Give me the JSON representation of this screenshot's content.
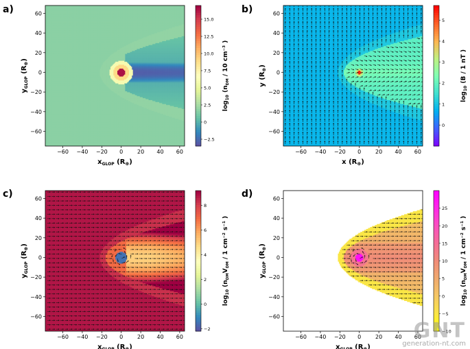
{
  "watermark": {
    "logo": "GNT",
    "site": "generation-nt.com"
  },
  "chart_data": [
    {
      "panel_label": "a)",
      "type": "heatmap",
      "field": "density",
      "xlim": [
        -78,
        65
      ],
      "ylim": [
        -75,
        68
      ],
      "x_ticks": [
        -60,
        -40,
        -20,
        0,
        20,
        40,
        60
      ],
      "y_ticks": [
        -60,
        -40,
        -20,
        0,
        20,
        40,
        60
      ],
      "xlabel": {
        "main": "x",
        "sub": "GLOP",
        "tail": " (R",
        "unit_sub": "⊕",
        "end": ")"
      },
      "ylabel": {
        "main": "y",
        "sub": "GLOP",
        "tail": " (R",
        "unit_sub": "⊕",
        "end": ")"
      },
      "colorbar": {
        "range": [
          -3.5,
          17
        ],
        "ticks": [
          -2.5,
          0,
          2.5,
          5,
          7.5,
          10,
          12.5,
          15
        ],
        "tick_labels": [
          "−2.5",
          "0",
          "2.5",
          "5.0",
          "7.5",
          "10.0",
          "12.5",
          "15.0"
        ],
        "colormap": "spectral",
        "label": {
          "prefix": "log",
          "prefix_sub": "10",
          "num": "n",
          "num_sub": "DM",
          "den": "10",
          "den_sup": "−3",
          "den_unit": "cm"
        }
      },
      "vectors": false
    },
    {
      "panel_label": "b)",
      "type": "heatmap",
      "field": "magnetic_field",
      "xlim": [
        -78,
        65
      ],
      "ylim": [
        -75,
        68
      ],
      "x_ticks": [
        -60,
        -40,
        -20,
        0,
        20,
        40,
        60
      ],
      "y_ticks": [
        -60,
        -40,
        -20,
        0,
        20,
        40,
        60
      ],
      "xlabel": {
        "main": "x",
        "sub": "",
        "tail": " (R",
        "unit_sub": "⊕",
        "end": ")"
      },
      "ylabel": {
        "main": "y",
        "sub": "",
        "tail": " (R",
        "unit_sub": "⊕",
        "end": ")"
      },
      "colorbar": {
        "range": [
          -1,
          5.7
        ],
        "ticks": [
          0,
          1,
          2,
          3,
          4,
          5
        ],
        "tick_labels": [
          "0",
          "1",
          "2",
          "3",
          "4",
          "5"
        ],
        "colormap": "rainbow",
        "label": {
          "prefix": "log",
          "prefix_sub": "10",
          "num": "B",
          "num_sub": "",
          "den": "1",
          "den_sup": "",
          "den_unit": "nT"
        }
      },
      "vectors": true
    },
    {
      "panel_label": "c)",
      "type": "heatmap",
      "field": "flux",
      "xlim": [
        -78,
        65
      ],
      "ylim": [
        -75,
        68
      ],
      "x_ticks": [
        -60,
        -40,
        -20,
        0,
        20,
        40,
        60
      ],
      "y_ticks": [
        -60,
        -40,
        -20,
        0,
        20,
        40,
        60
      ],
      "xlabel": {
        "main": "x",
        "sub": "GLOP",
        "tail": " (R",
        "unit_sub": "⊕",
        "end": ")"
      },
      "ylabel": {
        "main": "y",
        "sub": "GLOP",
        "tail": " (R",
        "unit_sub": "⊕",
        "end": ")"
      },
      "colorbar": {
        "range": [
          -2.2,
          9.2
        ],
        "ticks": [
          -2,
          0,
          2,
          4,
          6,
          8
        ],
        "tick_labels": [
          "−2",
          "0",
          "2",
          "4",
          "6",
          "8"
        ],
        "colormap": "spectral",
        "label": {
          "prefix": "log",
          "prefix_sub": "10",
          "num": "n",
          "num_sub": "DM",
          "num_vec": "V",
          "num_vec_sub": "DM",
          "den": "1",
          "den_sup": "−2",
          "den_unit": "cm",
          "den_tail": "s",
          "den_tail_sup": "−1"
        }
      },
      "vectors": true
    },
    {
      "panel_label": "d)",
      "type": "heatmap",
      "field": "enhanced_flux",
      "xlim": [
        -78,
        65
      ],
      "ylim": [
        -75,
        68
      ],
      "x_ticks": [
        -60,
        -40,
        -20,
        0,
        20,
        40,
        60
      ],
      "y_ticks": [
        -60,
        -40,
        -20,
        0,
        20,
        40,
        60
      ],
      "xlabel": {
        "main": "x",
        "sub": "GLOP",
        "tail": " (R",
        "unit_sub": "⊕",
        "end": ")"
      },
      "ylabel": {
        "main": "y",
        "sub": "GLOP",
        "tail": " (R",
        "unit_sub": "⊕",
        "end": ")"
      },
      "colorbar": {
        "range": [
          -10,
          30
        ],
        "ticks": [
          -10,
          -5,
          0,
          5,
          10,
          15,
          20,
          25
        ],
        "tick_labels": [
          "−10",
          "−5",
          "0",
          "5",
          "10",
          "15",
          "20",
          "25"
        ],
        "colormap": "plasma_r",
        "label": {
          "prefix": "log",
          "prefix_sub": "10",
          "num": "n",
          "num_sub": "DM",
          "num_vec": "V",
          "num_vec_sub": "DM",
          "den": "1",
          "den_sup": "−2",
          "den_unit": "cm",
          "den_tail": "s",
          "den_tail_sup": "−1"
        }
      },
      "vectors": true
    }
  ]
}
